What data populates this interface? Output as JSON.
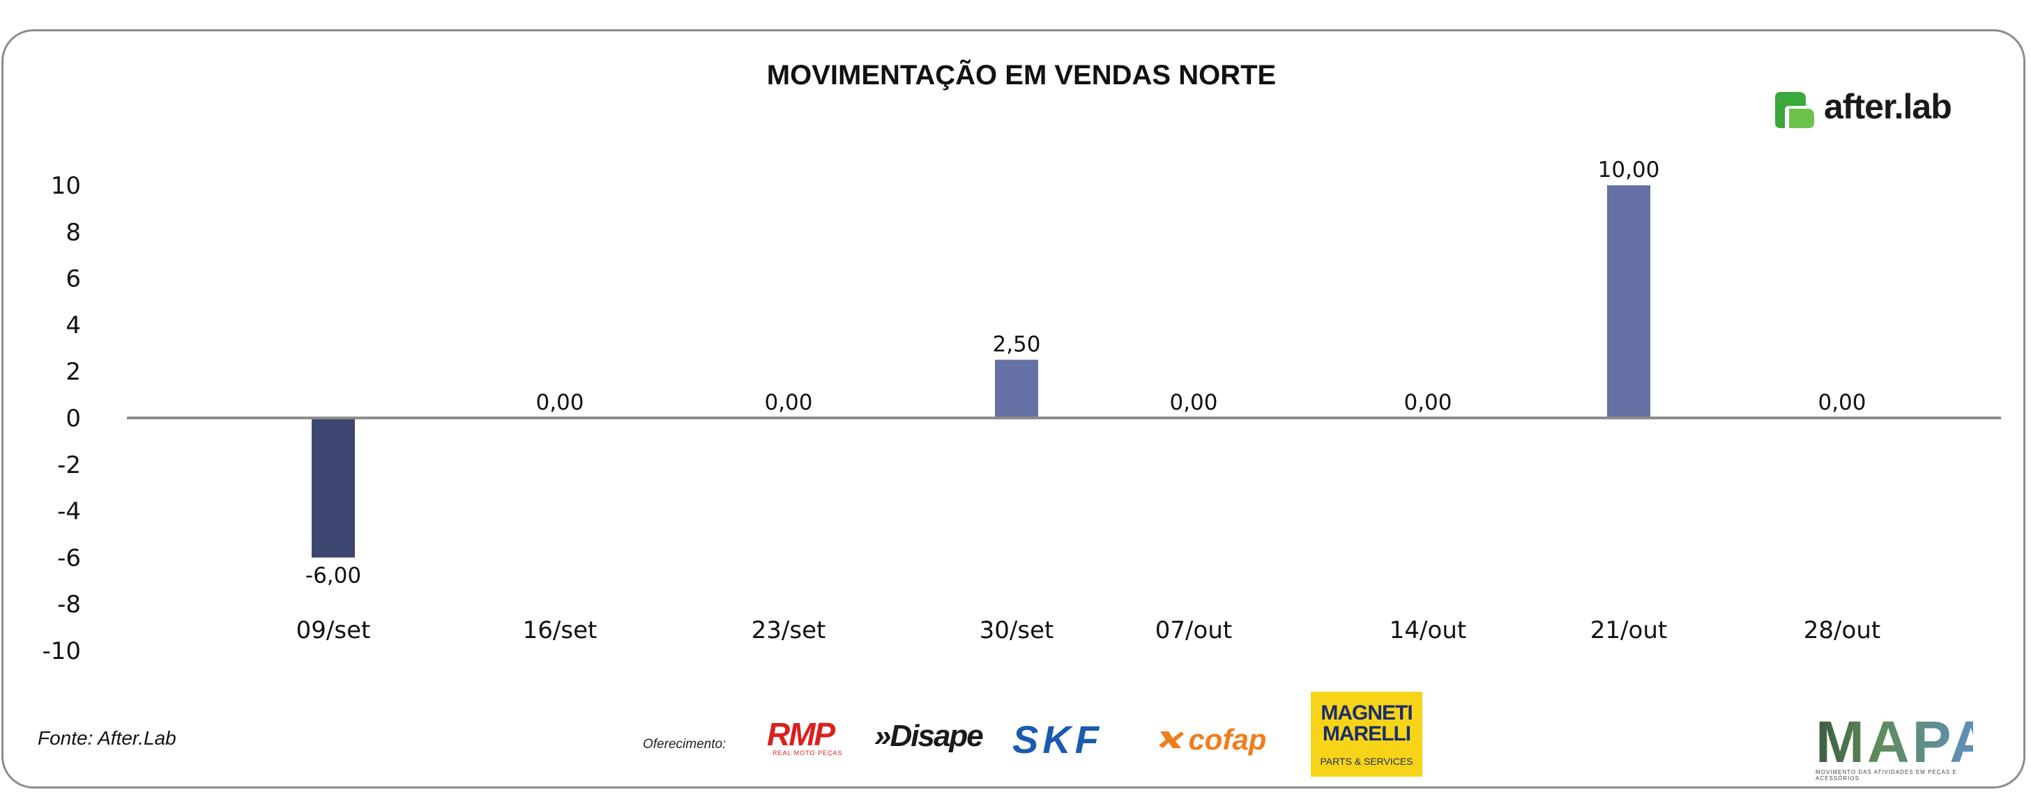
{
  "chart_data": {
    "type": "bar",
    "title": "MOVIMENTAÇÃO EM VENDAS NORTE",
    "xlabel": "",
    "ylabel": "",
    "categories": [
      "09/set",
      "16/set",
      "23/set",
      "30/set",
      "07/out",
      "14/out",
      "21/out",
      "28/out"
    ],
    "values": [
      -6.0,
      0.0,
      0.0,
      2.5,
      0.0,
      0.0,
      10.0,
      0.0
    ],
    "data_labels": [
      "-6,00",
      "0,00",
      "0,00",
      "2,50",
      "0,00",
      "0,00",
      "10,00",
      "0,00"
    ],
    "ylim": [
      -10,
      10
    ],
    "yticks": [
      10,
      8,
      6,
      4,
      2,
      0,
      -2,
      -4,
      -6,
      -8,
      -10
    ],
    "grid": false,
    "legend": "none",
    "colors": {
      "negative": "#3d4670",
      "positive": "#6571a4",
      "axis": "#8c8c8c"
    }
  },
  "footer": {
    "source": "Fonte: After.Lab",
    "sponsors_label": "Oferecimento:"
  },
  "logos": {
    "afterlab": "after.lab",
    "rmp": "RMP",
    "rmp_sub": "REAL MOTO PEÇAS",
    "disape": "»Disape",
    "skf": "SKF",
    "cofap": "cofap",
    "magneti_line1": "MAGNETI",
    "magneti_line2": "MARELLI",
    "magneti_sub": "PARTS & SERVICES",
    "mapa": "MAPA",
    "mapa_sub": "MOVIMENTO DAS ATIVIDADES EM PEÇAS E ACESSÓRIOS"
  }
}
